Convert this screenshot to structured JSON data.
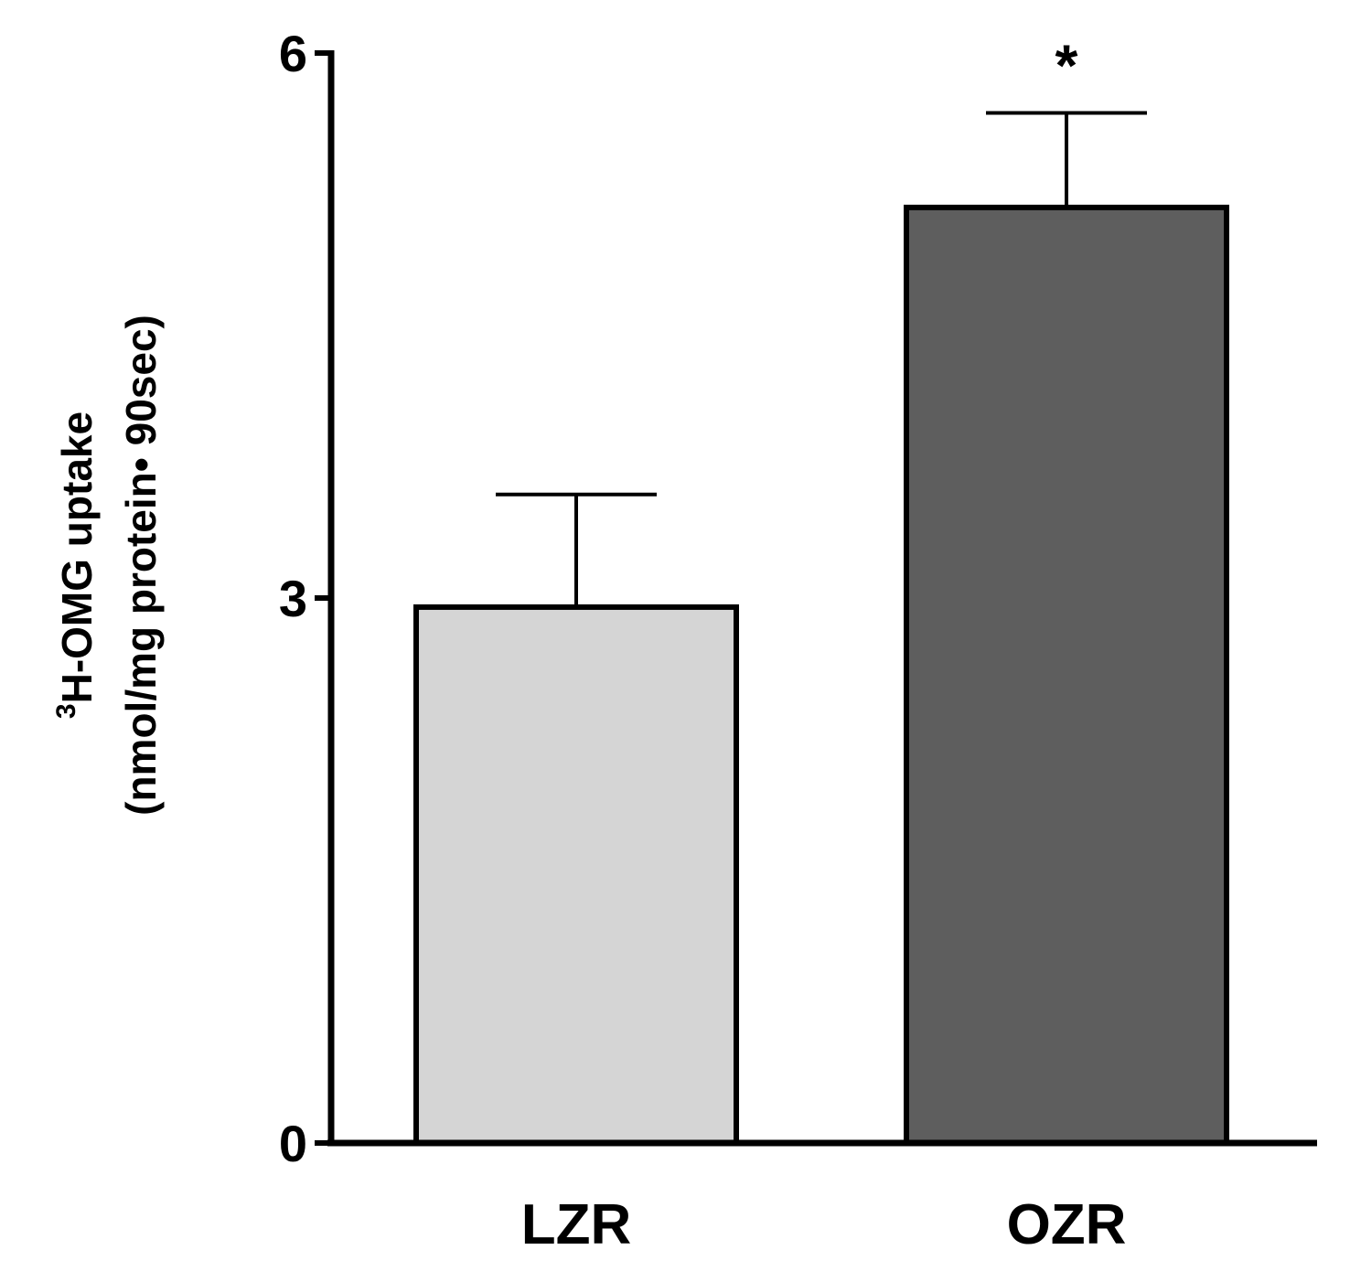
{
  "chart_data": {
    "type": "bar",
    "title": "",
    "xlabel": "",
    "ylabel_line1_sup": "3",
    "ylabel_line1": "H-OMG uptake",
    "ylabel_line2": "(nmol/mg protein• 90sec)",
    "ylim": [
      0,
      6
    ],
    "yticks": [
      "0",
      "3",
      "6"
    ],
    "categories": [
      "LZR",
      "OZR"
    ],
    "values": [
      2.95,
      5.15
    ],
    "errors": [
      0.62,
      0.52
    ],
    "colors": [
      "#d5d5d5",
      "#5e5e5e"
    ],
    "annotations": [
      "",
      "*"
    ],
    "grid": false
  }
}
